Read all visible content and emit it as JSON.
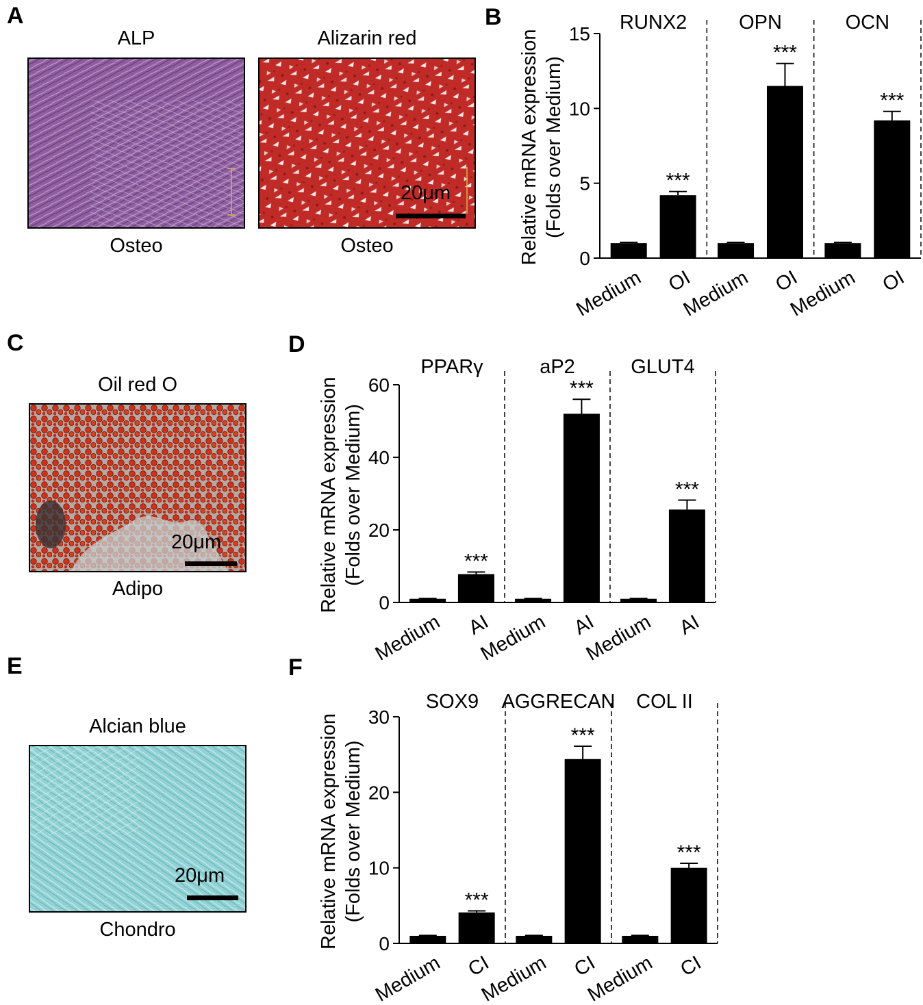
{
  "panels": {
    "A": {
      "letter": "A",
      "images": [
        {
          "title": "ALP",
          "caption": "Osteo"
        },
        {
          "title": "Alizarin red",
          "caption": "Osteo",
          "scale": "20μm"
        }
      ]
    },
    "C": {
      "letter": "C",
      "images": [
        {
          "title": "Oil red O",
          "caption": "Adipo",
          "scale": "20μm"
        }
      ]
    },
    "E": {
      "letter": "E",
      "images": [
        {
          "title": "Alcian blue",
          "caption": "Chondro",
          "scale": "20μm"
        }
      ]
    }
  },
  "colors": {
    "bar": "#000000",
    "alp": "#8c5a9e",
    "alizarin": "#c42a26",
    "oilred": "#c8321e",
    "alcian": "#8fd1d4"
  },
  "chart_data": [
    {
      "letter": "B",
      "type": "bar",
      "ylabel": "Relative mRNA expression",
      "ylabel2": "(Folds over Medium)",
      "ylim": [
        0,
        15
      ],
      "yticks": [
        0,
        5,
        10,
        15
      ],
      "groups": [
        {
          "gene": "RUNX2",
          "categories": [
            "Medium",
            "OI"
          ],
          "values": [
            1.0,
            4.2
          ],
          "errors": [
            0.05,
            0.25
          ],
          "sig": [
            "",
            "***"
          ]
        },
        {
          "gene": "OPN",
          "categories": [
            "Medium",
            "OI"
          ],
          "values": [
            1.0,
            11.5
          ],
          "errors": [
            0.05,
            1.5
          ],
          "sig": [
            "",
            "***"
          ]
        },
        {
          "gene": "OCN",
          "categories": [
            "Medium",
            "OI"
          ],
          "values": [
            1.0,
            9.2
          ],
          "errors": [
            0.05,
            0.6
          ],
          "sig": [
            "",
            "***"
          ]
        }
      ]
    },
    {
      "letter": "D",
      "type": "bar",
      "ylabel": "Relative mRNA expression",
      "ylabel2": "(Folds over Medium)",
      "ylim": [
        0,
        60
      ],
      "yticks": [
        0,
        20,
        40,
        60
      ],
      "groups": [
        {
          "gene": "PPARγ",
          "categories": [
            "Medium",
            "AI"
          ],
          "values": [
            1.0,
            7.8
          ],
          "errors": [
            0.1,
            0.6
          ],
          "sig": [
            "",
            "***"
          ]
        },
        {
          "gene": "aP2",
          "categories": [
            "Medium",
            "AI"
          ],
          "values": [
            1.0,
            52
          ],
          "errors": [
            0.1,
            4.0
          ],
          "sig": [
            "",
            "***"
          ]
        },
        {
          "gene": "GLUT4",
          "categories": [
            "Medium",
            "AI"
          ],
          "values": [
            1.0,
            25.6
          ],
          "errors": [
            0.1,
            2.6
          ],
          "sig": [
            "",
            "***"
          ]
        }
      ]
    },
    {
      "letter": "F",
      "type": "bar",
      "ylabel": "Relative mRNA expression",
      "ylabel2": "(Folds over Medium)",
      "ylim": [
        0,
        30
      ],
      "yticks": [
        0,
        10,
        20,
        30
      ],
      "groups": [
        {
          "gene": "SOX9",
          "categories": [
            "Medium",
            "CI"
          ],
          "values": [
            1.0,
            4.1
          ],
          "errors": [
            0.05,
            0.2
          ],
          "sig": [
            "",
            "***"
          ]
        },
        {
          "gene": "AGGRECAN",
          "categories": [
            "Medium",
            "CI"
          ],
          "values": [
            1.0,
            24.4
          ],
          "errors": [
            0.05,
            1.7
          ],
          "sig": [
            "",
            "***"
          ]
        },
        {
          "gene": "COL II",
          "categories": [
            "Medium",
            "CI"
          ],
          "values": [
            1.0,
            10.0
          ],
          "errors": [
            0.05,
            0.6
          ],
          "sig": [
            "",
            "***"
          ]
        }
      ]
    }
  ]
}
